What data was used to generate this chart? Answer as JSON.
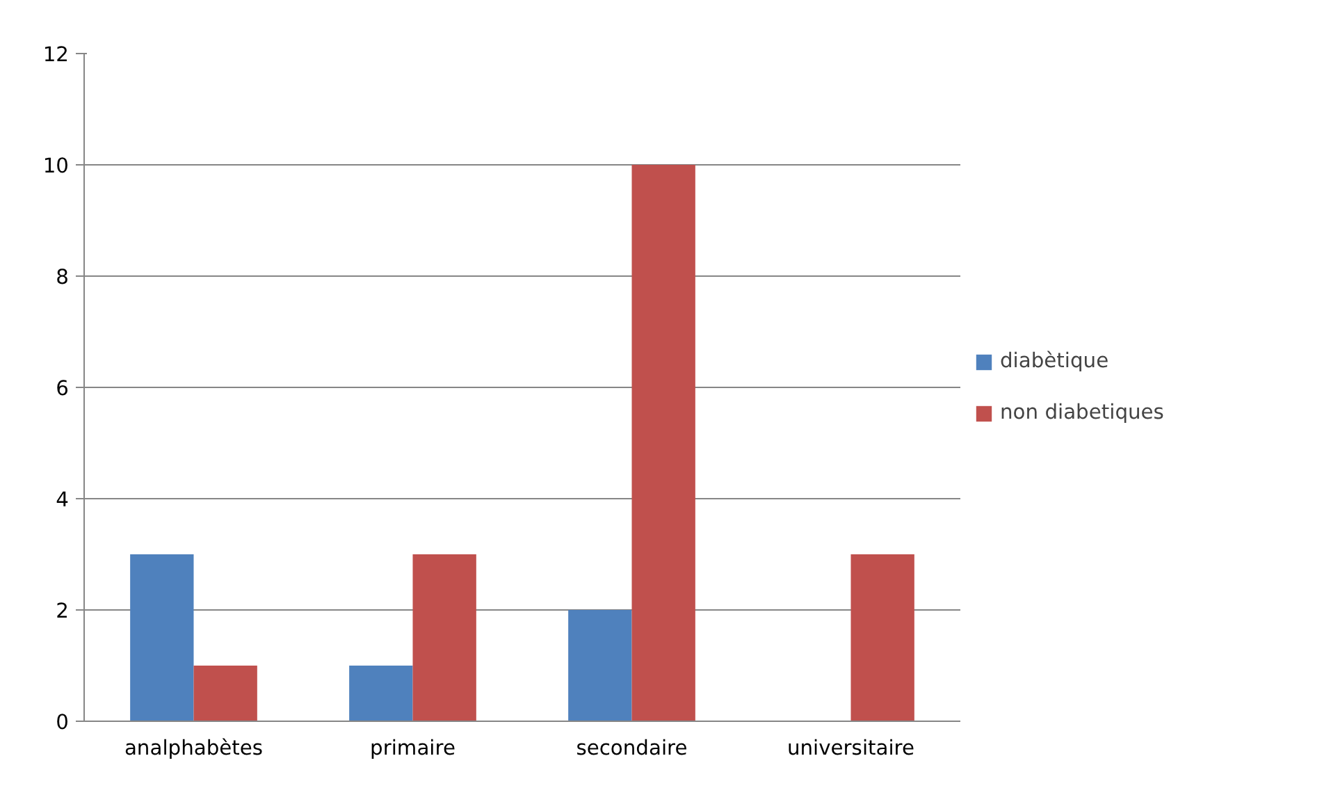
{
  "chart_data": {
    "type": "bar",
    "categories": [
      "analphabètes",
      "primaire",
      "secondaire",
      "universitaire"
    ],
    "series": [
      {
        "name": "diabètique",
        "color": "#4f81bd",
        "values": [
          3,
          1,
          2,
          0
        ]
      },
      {
        "name": "non diabetiques",
        "color": "#c0504d",
        "values": [
          1,
          3,
          10,
          3
        ]
      }
    ],
    "ylim": [
      0,
      12
    ],
    "yticks": [
      0,
      2,
      4,
      6,
      8,
      10,
      12
    ],
    "grid": "y",
    "legend": "right"
  }
}
